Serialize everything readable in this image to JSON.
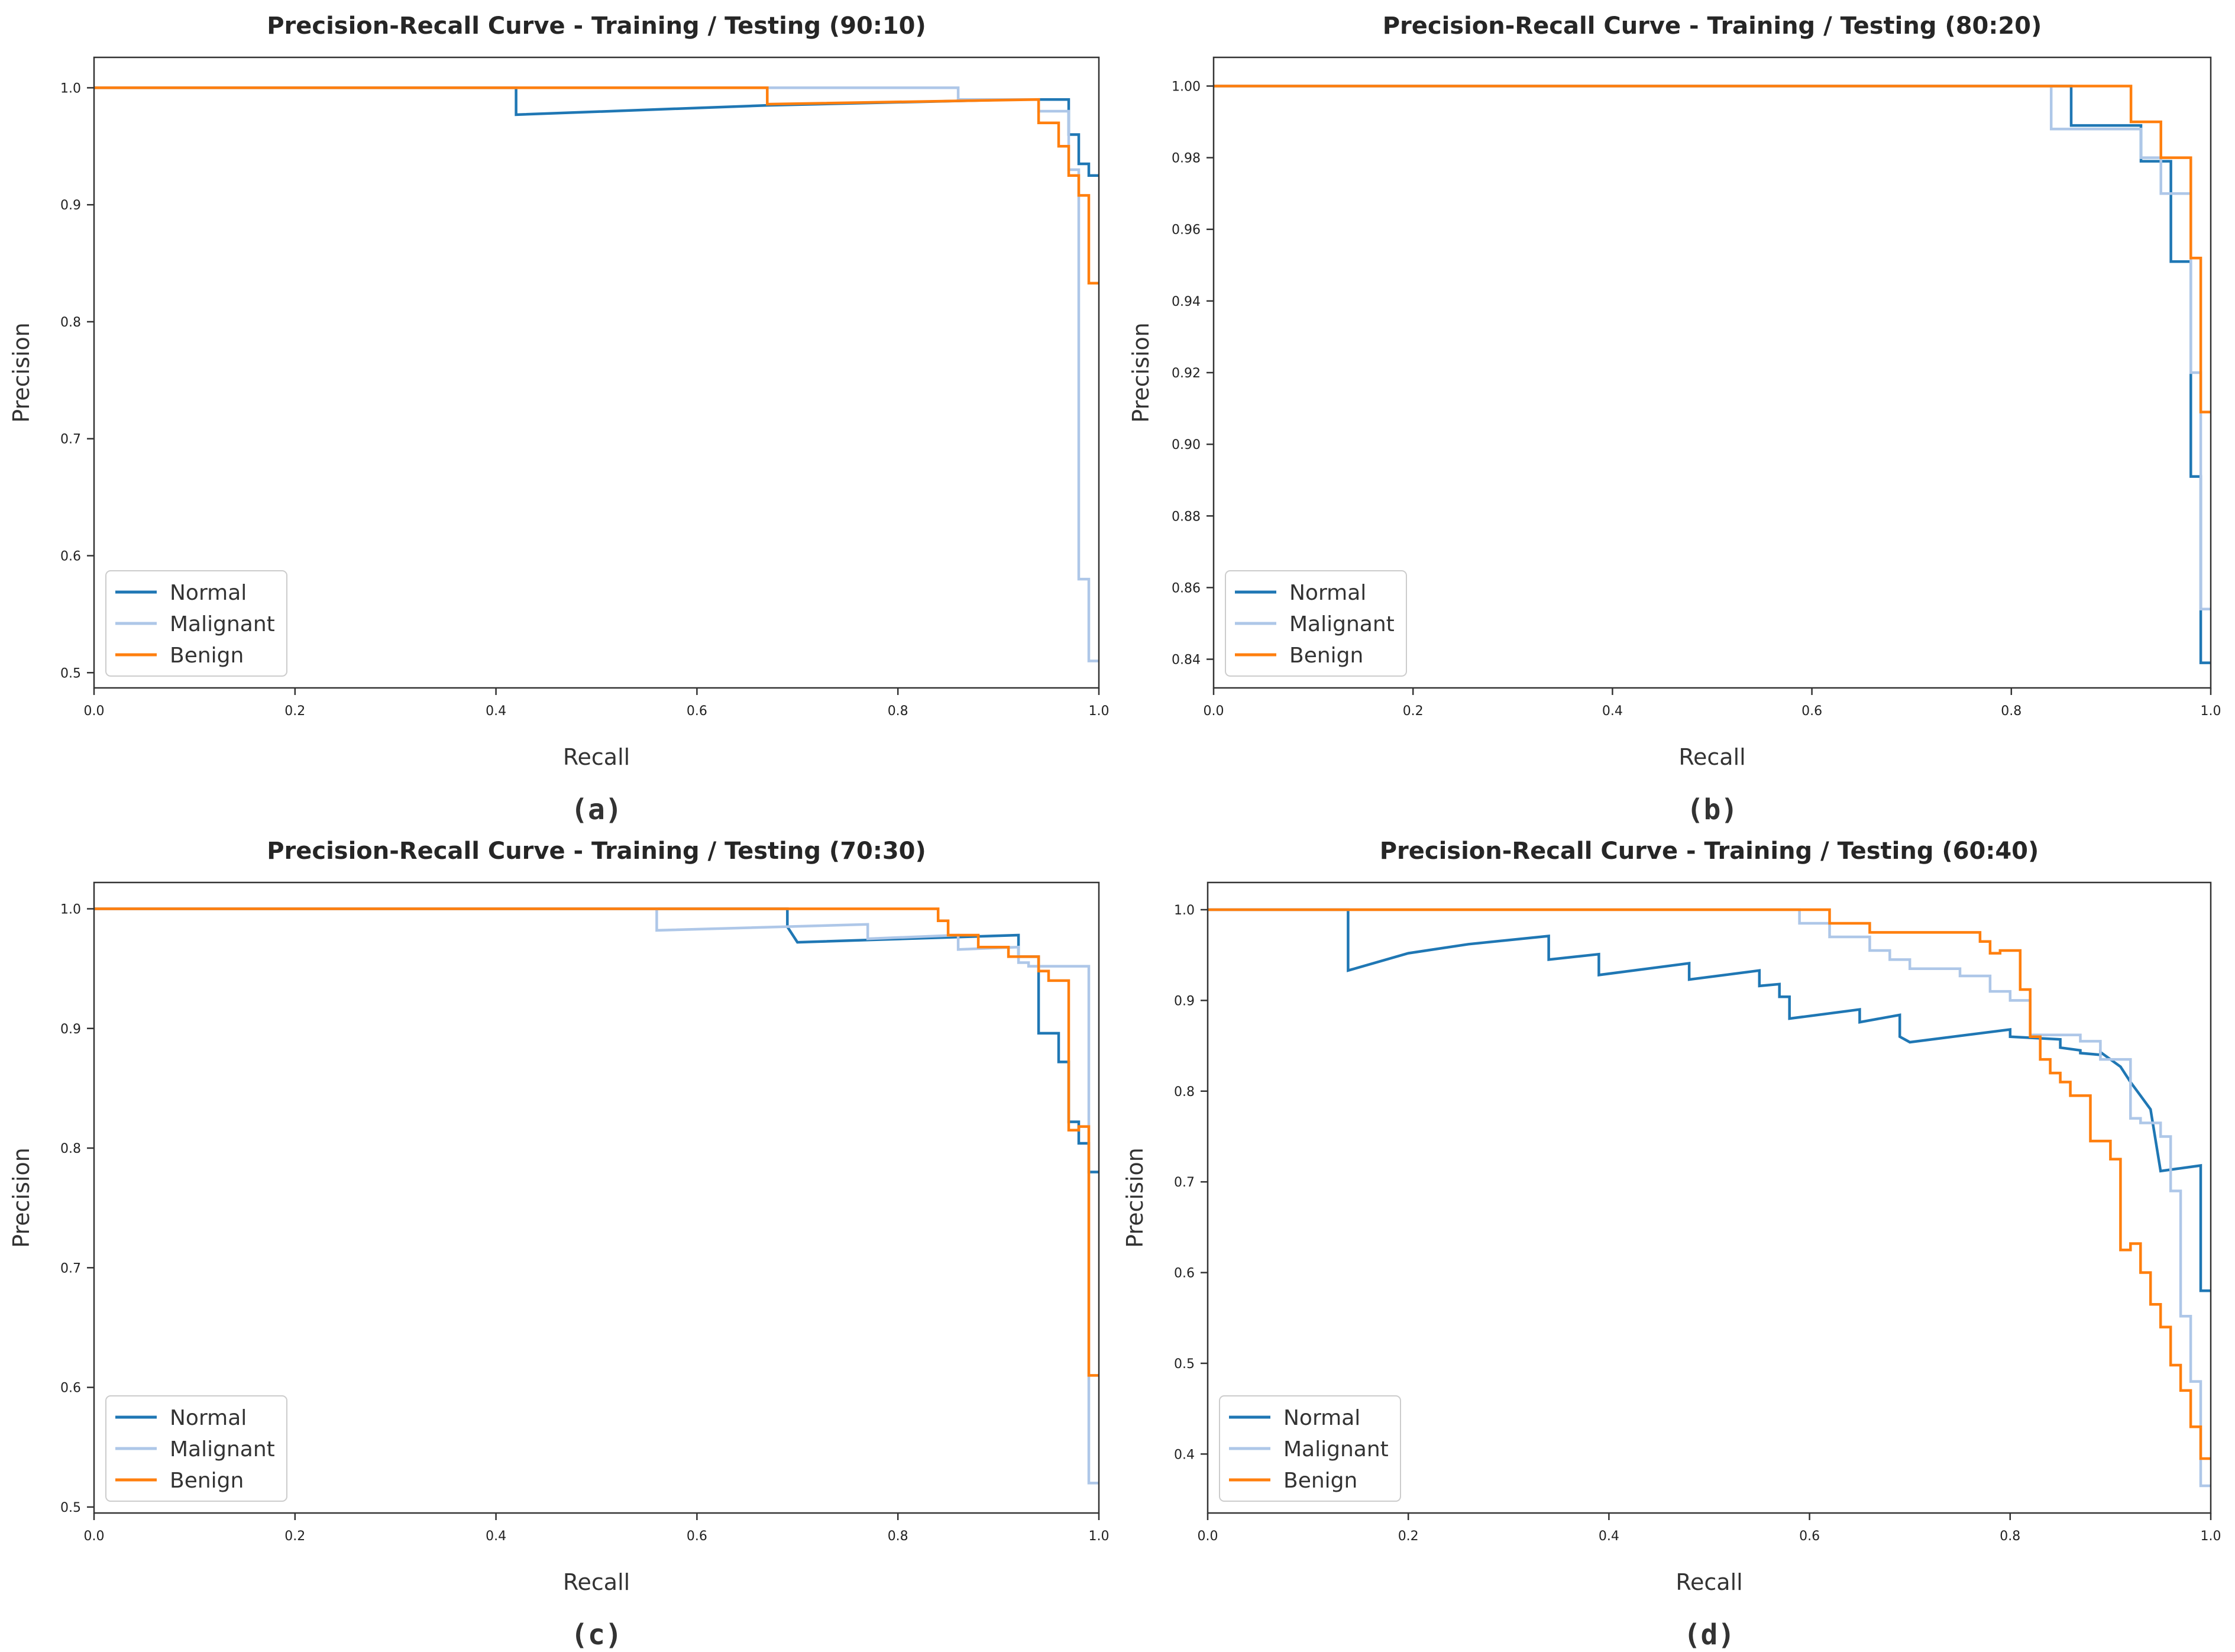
{
  "figure": {
    "panels": [
      "(a)",
      "(b)",
      "(c)",
      "(d)"
    ]
  },
  "colors": {
    "Normal": "#1f77b4",
    "Malignant": "#aec7e8",
    "Benign": "#ff7f0e",
    "axis": "#333333",
    "title": "#262626"
  },
  "chart_data": [
    {
      "type": "line",
      "caption": "(a)",
      "title": "Precision-Recall Curve - Training / Testing (90:10)",
      "xlabel": "Recall",
      "ylabel": "Precision",
      "xlim": [
        0,
        1
      ],
      "ylim": [
        0.487,
        1.026
      ],
      "xticks": [
        0.0,
        0.2,
        0.4,
        0.6,
        0.8,
        1.0
      ],
      "xtick_labels": [
        "0.0",
        "0.2",
        "0.4",
        "0.6",
        "0.8",
        "1.0"
      ],
      "yticks": [
        0.5,
        0.6,
        0.7,
        0.8,
        0.9,
        1.0
      ],
      "ytick_labels": [
        "0.5",
        "0.6",
        "0.7",
        "0.8",
        "0.9",
        "1.0"
      ],
      "legend": {
        "position": "lower-left",
        "entries": [
          "Normal",
          "Malignant",
          "Benign"
        ]
      },
      "series": [
        {
          "name": "Normal",
          "recall": [
            0.0,
            0.42,
            0.42,
            0.67,
            0.92,
            0.97,
            0.97,
            0.98,
            0.98,
            0.99,
            0.99,
            1.0
          ],
          "precision": [
            1.0,
            1.0,
            0.977,
            0.985,
            0.99,
            0.99,
            0.96,
            0.96,
            0.935,
            0.935,
            0.925,
            0.925
          ]
        },
        {
          "name": "Malignant",
          "recall": [
            0.0,
            0.86,
            0.86,
            0.94,
            0.94,
            0.97,
            0.97,
            0.98,
            0.98,
            0.99,
            0.99,
            1.0
          ],
          "precision": [
            1.0,
            1.0,
            0.99,
            0.99,
            0.98,
            0.98,
            0.93,
            0.93,
            0.58,
            0.58,
            0.51,
            0.51
          ]
        },
        {
          "name": "Benign",
          "recall": [
            0.0,
            0.67,
            0.67,
            0.94,
            0.94,
            0.96,
            0.96,
            0.97,
            0.97,
            0.98,
            0.98,
            0.99,
            0.99,
            1.0
          ],
          "precision": [
            1.0,
            1.0,
            0.986,
            0.99,
            0.97,
            0.97,
            0.95,
            0.95,
            0.925,
            0.925,
            0.908,
            0.908,
            0.833,
            0.833
          ]
        }
      ]
    },
    {
      "type": "line",
      "caption": "(b)",
      "title": "Precision-Recall Curve - Training / Testing (80:20)",
      "xlabel": "Recall",
      "ylabel": "Precision",
      "xlim": [
        0,
        1
      ],
      "ylim": [
        0.832,
        1.008
      ],
      "xticks": [
        0.0,
        0.2,
        0.4,
        0.6,
        0.8,
        1.0
      ],
      "xtick_labels": [
        "0.0",
        "0.2",
        "0.4",
        "0.6",
        "0.8",
        "1.0"
      ],
      "yticks": [
        0.84,
        0.86,
        0.88,
        0.9,
        0.92,
        0.94,
        0.96,
        0.98,
        1.0
      ],
      "ytick_labels": [
        "0.84",
        "0.86",
        "0.88",
        "0.90",
        "0.92",
        "0.94",
        "0.96",
        "0.98",
        "1.00"
      ],
      "legend": {
        "position": "lower-left",
        "entries": [
          "Normal",
          "Malignant",
          "Benign"
        ]
      },
      "series": [
        {
          "name": "Normal",
          "recall": [
            0.0,
            0.86,
            0.86,
            0.93,
            0.93,
            0.96,
            0.96,
            0.98,
            0.98,
            0.99,
            0.99,
            1.0
          ],
          "precision": [
            1.0,
            1.0,
            0.989,
            0.989,
            0.979,
            0.979,
            0.951,
            0.951,
            0.891,
            0.891,
            0.839,
            0.839
          ]
        },
        {
          "name": "Malignant",
          "recall": [
            0.0,
            0.84,
            0.84,
            0.93,
            0.93,
            0.95,
            0.95,
            0.98,
            0.98,
            0.99,
            0.99,
            1.0
          ],
          "precision": [
            1.0,
            1.0,
            0.988,
            0.988,
            0.98,
            0.98,
            0.97,
            0.97,
            0.92,
            0.92,
            0.854,
            0.854
          ]
        },
        {
          "name": "Benign",
          "recall": [
            0.0,
            0.92,
            0.92,
            0.95,
            0.95,
            0.98,
            0.98,
            0.99,
            0.99,
            1.0
          ],
          "precision": [
            1.0,
            1.0,
            0.99,
            0.99,
            0.98,
            0.98,
            0.952,
            0.952,
            0.909,
            0.909
          ]
        }
      ]
    },
    {
      "type": "line",
      "caption": "(c)",
      "title": "Precision-Recall Curve - Training / Testing (70:30)",
      "xlabel": "Recall",
      "ylabel": "Precision",
      "xlim": [
        0,
        1
      ],
      "ylim": [
        0.495,
        1.022
      ],
      "xticks": [
        0.0,
        0.2,
        0.4,
        0.6,
        0.8,
        1.0
      ],
      "xtick_labels": [
        "0.0",
        "0.2",
        "0.4",
        "0.6",
        "0.8",
        "1.0"
      ],
      "yticks": [
        0.5,
        0.6,
        0.7,
        0.8,
        0.9,
        1.0
      ],
      "ytick_labels": [
        "0.5",
        "0.6",
        "0.7",
        "0.8",
        "0.9",
        "1.0"
      ],
      "legend": {
        "position": "lower-left",
        "entries": [
          "Normal",
          "Malignant",
          "Benign"
        ]
      },
      "series": [
        {
          "name": "Normal",
          "recall": [
            0.0,
            0.69,
            0.69,
            0.7,
            0.92,
            0.92,
            0.94,
            0.94,
            0.96,
            0.96,
            0.97,
            0.97,
            0.98,
            0.98,
            0.99,
            0.99,
            1.0
          ],
          "precision": [
            1.0,
            1.0,
            0.985,
            0.972,
            0.978,
            0.96,
            0.96,
            0.896,
            0.896,
            0.872,
            0.872,
            0.822,
            0.822,
            0.804,
            0.804,
            0.78,
            0.78
          ]
        },
        {
          "name": "Malignant",
          "recall": [
            0.0,
            0.56,
            0.56,
            0.77,
            0.77,
            0.86,
            0.86,
            0.92,
            0.92,
            0.93,
            0.93,
            0.99,
            0.99,
            1.0
          ],
          "precision": [
            1.0,
            1.0,
            0.982,
            0.987,
            0.975,
            0.978,
            0.966,
            0.968,
            0.955,
            0.955,
            0.952,
            0.952,
            0.52,
            0.52
          ]
        },
        {
          "name": "Benign",
          "recall": [
            0.0,
            0.84,
            0.84,
            0.85,
            0.85,
            0.88,
            0.88,
            0.91,
            0.91,
            0.94,
            0.94,
            0.95,
            0.95,
            0.97,
            0.97,
            0.98,
            0.98,
            0.99,
            0.99,
            1.0
          ],
          "precision": [
            1.0,
            1.0,
            0.99,
            0.99,
            0.978,
            0.978,
            0.968,
            0.968,
            0.96,
            0.96,
            0.948,
            0.948,
            0.94,
            0.94,
            0.815,
            0.815,
            0.818,
            0.818,
            0.61,
            0.61
          ]
        }
      ]
    },
    {
      "type": "line",
      "caption": "(d)",
      "title": "Precision-Recall Curve - Training / Testing (60:40)",
      "xlabel": "Recall",
      "ylabel": "Precision",
      "xlim": [
        0,
        1
      ],
      "ylim": [
        0.335,
        1.03
      ],
      "xticks": [
        0.0,
        0.2,
        0.4,
        0.6,
        0.8,
        1.0
      ],
      "xtick_labels": [
        "0.0",
        "0.2",
        "0.4",
        "0.6",
        "0.8",
        "1.0"
      ],
      "yticks": [
        0.4,
        0.5,
        0.6,
        0.7,
        0.8,
        0.9,
        1.0
      ],
      "ytick_labels": [
        "0.4",
        "0.5",
        "0.6",
        "0.7",
        "0.8",
        "0.9",
        "1.0"
      ],
      "legend": {
        "position": "lower-left",
        "entries": [
          "Normal",
          "Malignant",
          "Benign"
        ]
      },
      "series": [
        {
          "name": "Normal",
          "recall": [
            0.0,
            0.14,
            0.14,
            0.2,
            0.26,
            0.34,
            0.34,
            0.39,
            0.39,
            0.48,
            0.48,
            0.55,
            0.55,
            0.57,
            0.57,
            0.58,
            0.58,
            0.65,
            0.65,
            0.69,
            0.69,
            0.7,
            0.8,
            0.8,
            0.85,
            0.85,
            0.87,
            0.87,
            0.89,
            0.89,
            0.91,
            0.91,
            0.92,
            0.92,
            0.93,
            0.93,
            0.94,
            0.94,
            0.95,
            0.95,
            0.99,
            0.99,
            1.0
          ],
          "precision": [
            1.0,
            1.0,
            0.933,
            0.952,
            0.962,
            0.971,
            0.945,
            0.951,
            0.928,
            0.941,
            0.923,
            0.933,
            0.916,
            0.918,
            0.904,
            0.904,
            0.88,
            0.89,
            0.876,
            0.884,
            0.86,
            0.854,
            0.868,
            0.86,
            0.857,
            0.848,
            0.845,
            0.842,
            0.84,
            0.843,
            0.827,
            0.827,
            0.81,
            0.81,
            0.795,
            0.795,
            0.78,
            0.78,
            0.712,
            0.712,
            0.718,
            0.58,
            0.58
          ]
        },
        {
          "name": "Malignant",
          "recall": [
            0.0,
            0.59,
            0.59,
            0.62,
            0.62,
            0.66,
            0.66,
            0.68,
            0.68,
            0.7,
            0.7,
            0.75,
            0.75,
            0.78,
            0.78,
            0.8,
            0.8,
            0.82,
            0.82,
            0.87,
            0.87,
            0.89,
            0.89,
            0.92,
            0.92,
            0.93,
            0.93,
            0.95,
            0.95,
            0.96,
            0.96,
            0.97,
            0.97,
            0.98,
            0.98,
            0.99,
            0.99,
            1.0
          ],
          "precision": [
            1.0,
            1.0,
            0.985,
            0.985,
            0.97,
            0.97,
            0.955,
            0.955,
            0.945,
            0.945,
            0.935,
            0.935,
            0.927,
            0.927,
            0.91,
            0.91,
            0.9,
            0.9,
            0.862,
            0.862,
            0.855,
            0.855,
            0.835,
            0.835,
            0.77,
            0.77,
            0.765,
            0.765,
            0.75,
            0.75,
            0.69,
            0.69,
            0.552,
            0.552,
            0.48,
            0.48,
            0.365,
            0.365
          ]
        },
        {
          "name": "Benign",
          "recall": [
            0.0,
            0.62,
            0.62,
            0.66,
            0.66,
            0.77,
            0.77,
            0.78,
            0.78,
            0.79,
            0.79,
            0.81,
            0.81,
            0.82,
            0.82,
            0.83,
            0.83,
            0.84,
            0.84,
            0.85,
            0.85,
            0.86,
            0.86,
            0.88,
            0.88,
            0.9,
            0.9,
            0.91,
            0.91,
            0.92,
            0.92,
            0.93,
            0.93,
            0.94,
            0.94,
            0.95,
            0.95,
            0.96,
            0.96,
            0.97,
            0.97,
            0.98,
            0.98,
            0.99,
            0.99,
            1.0
          ],
          "precision": [
            1.0,
            1.0,
            0.985,
            0.985,
            0.975,
            0.975,
            0.965,
            0.965,
            0.952,
            0.952,
            0.955,
            0.955,
            0.912,
            0.912,
            0.86,
            0.86,
            0.835,
            0.835,
            0.82,
            0.82,
            0.81,
            0.81,
            0.795,
            0.795,
            0.745,
            0.745,
            0.725,
            0.725,
            0.625,
            0.625,
            0.632,
            0.632,
            0.6,
            0.6,
            0.565,
            0.565,
            0.54,
            0.54,
            0.498,
            0.498,
            0.47,
            0.47,
            0.43,
            0.43,
            0.395,
            0.395
          ]
        }
      ]
    }
  ]
}
